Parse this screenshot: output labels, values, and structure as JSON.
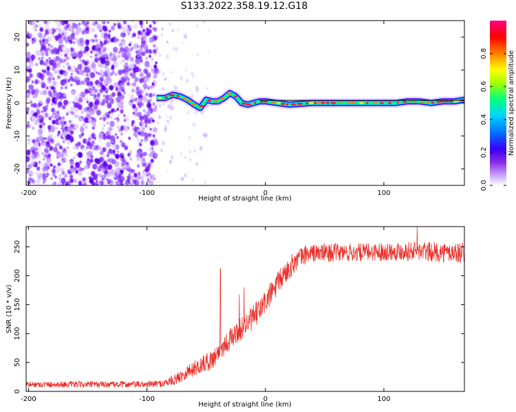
{
  "title": "S133.2022.358.19.12.G18",
  "colors": {
    "snr_line": "#e8302a",
    "spectrum_fg": "#6a00ff",
    "axis": "#000000",
    "colormap": [
      "#ffffff",
      "#c9a6ff",
      "#8a2be2",
      "#4b0082",
      "#0000ff",
      "#00bfff",
      "#00ff80",
      "#ffff00",
      "#ff8000",
      "#ff0000",
      "#ff0080"
    ]
  },
  "chart_data": [
    {
      "type": "heatmap",
      "title": "",
      "xlabel": "Height of straight line (km)",
      "ylabel": "Frequency (Hz)",
      "xlim": [
        -202,
        168
      ],
      "ylim": [
        -25,
        25
      ],
      "xticks": [
        -200,
        -100,
        0,
        100
      ],
      "yticks": [
        -20,
        -10,
        0,
        10,
        20
      ],
      "noise_region_x": [
        -202,
        -92
      ],
      "signal_track": {
        "x": [
          -92,
          -85,
          -78,
          -72,
          -66,
          -60,
          -55,
          -50,
          -45,
          -40,
          -35,
          -30,
          -25,
          -20,
          -15,
          -10,
          -5,
          0,
          10,
          20,
          40,
          60,
          80,
          100,
          110,
          120,
          130,
          140,
          150,
          160,
          168
        ],
        "y": [
          1.5,
          1.5,
          2.5,
          2,
          1,
          -0.5,
          -1.5,
          1,
          0.5,
          0.5,
          1.5,
          3,
          2,
          0,
          -0.5,
          0,
          0.5,
          0.5,
          0,
          -0.5,
          0,
          0,
          0,
          0,
          0,
          0.5,
          0.5,
          0,
          0.5,
          0.5,
          1
        ]
      },
      "colorbar": {
        "label": "Normalized spectral amplitude",
        "ticks": [
          "0.0",
          "0.2",
          "0.4",
          "0.6",
          "0.8"
        ],
        "range": [
          0,
          1
        ]
      }
    },
    {
      "type": "line",
      "title": "",
      "xlabel": "Height of straight line (km)",
      "ylabel": "SNR (10 * v/v)",
      "xlim": [
        -202,
        168
      ],
      "ylim": [
        0,
        285
      ],
      "xticks": [
        -200,
        -100,
        0,
        100
      ],
      "yticks": [
        0,
        50,
        100,
        150,
        200,
        250
      ],
      "series": [
        {
          "envelope": {
            "x": [
              -202,
              -150,
              -100,
              -85,
              -75,
              -65,
              -55,
              -45,
              -35,
              -25,
              -15,
              -5,
              5,
              15,
              25,
              35,
              50,
              75,
              100,
              125,
              150,
              168
            ],
            "y": [
              12,
              12,
              12,
              14,
              22,
              35,
              45,
              55,
              80,
              100,
              118,
              140,
              170,
              200,
              225,
              238,
              240,
              240,
              242,
              243,
              240,
              240
            ]
          },
          "noise_amplitude": {
            "x": [
              -202,
              -90,
              -60,
              -40,
              -20,
              0,
              20,
              40,
              100,
              168
            ],
            "y": [
              5,
              6,
              14,
              18,
              20,
              22,
              20,
              16,
              16,
              18
            ]
          },
          "spikes": [
            {
              "x": -38,
              "y": 212
            },
            {
              "x": -18,
              "y": 180
            },
            {
              "x": -22,
              "y": 168
            },
            {
              "x": 128,
              "y": 285
            }
          ]
        }
      ]
    }
  ]
}
